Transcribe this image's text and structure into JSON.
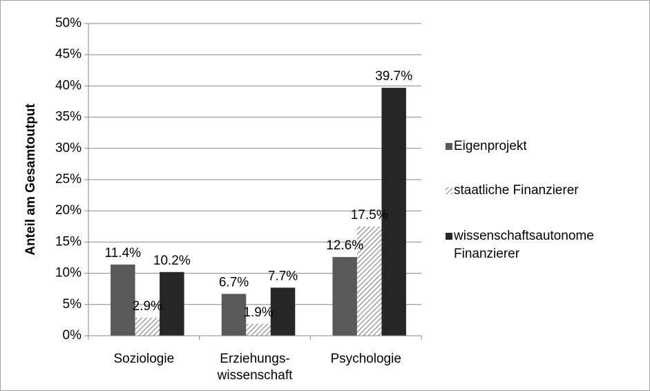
{
  "chart_data": {
    "type": "bar",
    "ylabel": "Anteil am Gesamtoutput",
    "categories": [
      "Soziologie",
      "Erziehungs-\nwissenschaft",
      "Psychologie"
    ],
    "series": [
      {
        "name": "Eigenprojekt",
        "color": "#595959",
        "values": [
          11.4,
          6.7,
          12.6
        ],
        "value_labels": [
          "11.4%",
          "6.7%",
          "12.6%"
        ]
      },
      {
        "name": "staatliche Finanzierer",
        "color": "#808080",
        "pattern": "hatch",
        "values": [
          2.9,
          1.9,
          17.5
        ],
        "value_labels": [
          "2.9%",
          "1.9%",
          "17.5%"
        ]
      },
      {
        "name": "wissenschaftsautonome\nFinanzierer",
        "color": "#262626",
        "values": [
          10.2,
          7.7,
          39.7
        ],
        "value_labels": [
          "10.2%",
          "7.7%",
          "39.7%"
        ]
      }
    ],
    "ylim": [
      0,
      50
    ],
    "yticks": [
      {
        "value": 0,
        "label": "0%"
      },
      {
        "value": 5,
        "label": "5%"
      },
      {
        "value": 10,
        "label": "10%"
      },
      {
        "value": 15,
        "label": "15%"
      },
      {
        "value": 20,
        "label": "20%"
      },
      {
        "value": 25,
        "label": "25%"
      },
      {
        "value": 30,
        "label": "30%"
      },
      {
        "value": 35,
        "label": "35%"
      },
      {
        "value": 40,
        "label": "40%"
      },
      {
        "value": 45,
        "label": "45%"
      },
      {
        "value": 50,
        "label": "50%"
      }
    ],
    "grid": true,
    "legend": "right"
  }
}
